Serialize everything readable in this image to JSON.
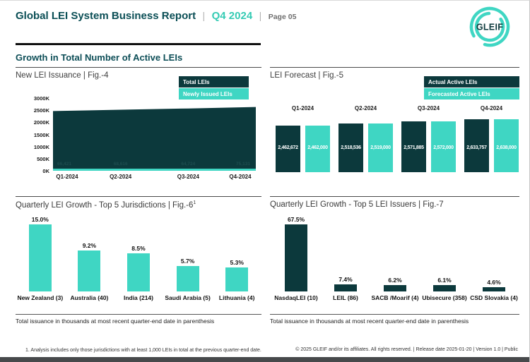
{
  "page": {
    "header": {
      "title": "Global LEI System Business Report",
      "separator": "|",
      "period": "Q4 2024",
      "page_label": "Page 05"
    },
    "logo_text": "GLEIF",
    "section_heading": "Growth in Total Number of Active LEIs",
    "footnote": "1. Analysis includes only those jurisdictions with at least 1,000 LEIs in total at the previous quarter-end date.",
    "copyright": "© 2025 GLEIF and/or its affiliates. All rights reserved. | Release date 2025-01-20 | Version 1.0 | Public"
  },
  "colors": {
    "dark_teal": "#0c393c",
    "teal": "#3fd6c3",
    "heading_teal": "#0d4e57",
    "accent_teal": "#35cbb4"
  },
  "chart_data": [
    {
      "id": "fig4",
      "type": "area",
      "title": "New LEI Issuance | Fig.-4",
      "categories": [
        "Q1-2024",
        "Q2-2024",
        "Q3-2024",
        "Q4-2024"
      ],
      "series": [
        {
          "name": "Total LEIs",
          "color": "#0c393c",
          "values": [
            2462672,
            2518536,
            2571885,
            2633757
          ]
        },
        {
          "name": "Newly Issued LEIs",
          "color": "#3fd6c3",
          "values": [
            66421,
            68616,
            64724,
            75131
          ],
          "labels": [
            "66,421",
            "68,616",
            "64,724",
            "75,131"
          ]
        }
      ],
      "ylim": [
        0,
        3000000
      ],
      "yticks": [
        "3000K",
        "2500K",
        "2000K",
        "1500K",
        "1000K",
        "500K",
        "0K"
      ],
      "legend_position": "top-right",
      "grid": false
    },
    {
      "id": "fig5",
      "type": "bar",
      "title": "LEI Forecast | Fig.-5",
      "categories": [
        "Q1-2024",
        "Q2-2024",
        "Q3-2024",
        "Q4-2024"
      ],
      "series": [
        {
          "name": "Actual Active LEIs",
          "color": "#0c393c",
          "values": [
            2462672,
            2518536,
            2571885,
            2633757
          ],
          "labels": [
            "2,462,672",
            "2,518,536",
            "2,571,885",
            "2,633,757"
          ]
        },
        {
          "name": "Forecasted Active LEIs",
          "color": "#3fd6c3",
          "values": [
            2462000,
            2519000,
            2572000,
            2638000
          ],
          "labels": [
            "2,462,000",
            "2,519,000",
            "2,572,000",
            "2,638,000"
          ]
        }
      ],
      "legend_position": "top-right",
      "grid": false
    },
    {
      "id": "fig6",
      "type": "bar",
      "title": "Quarterly LEI Growth - Top 5 Jurisdictions | Fig.-6",
      "title_superscript": "1",
      "categories": [
        "New Zealand (3)",
        "Australia (40)",
        "India (214)",
        "Saudi Arabia (5)",
        "Lithuania (4)"
      ],
      "values": [
        15.0,
        9.2,
        8.5,
        5.7,
        5.3
      ],
      "value_labels": [
        "15.0%",
        "9.2%",
        "8.5%",
        "5.7%",
        "5.3%"
      ],
      "bar_color": "#3fd6c3",
      "note": "Total issuance in thousands at most recent quarter-end date in parenthesis",
      "grid": false
    },
    {
      "id": "fig7",
      "type": "bar",
      "title": "Quarterly LEI Growth - Top 5 LEI Issuers | Fig.-7",
      "categories": [
        "NasdaqLEI (10)",
        "LEIL (86)",
        "SACB /Moarif (4)",
        "Ubisecure (358)",
        "CSD Slovakia (4)"
      ],
      "values": [
        67.5,
        7.4,
        6.2,
        6.1,
        4.6
      ],
      "value_labels": [
        "67.5%",
        "7.4%",
        "6.2%",
        "6.1%",
        "4.6%"
      ],
      "bar_color": "#0c393c",
      "note": "Total issuance in thousands at most recent quarter-end date in parenthesis",
      "grid": false
    }
  ]
}
